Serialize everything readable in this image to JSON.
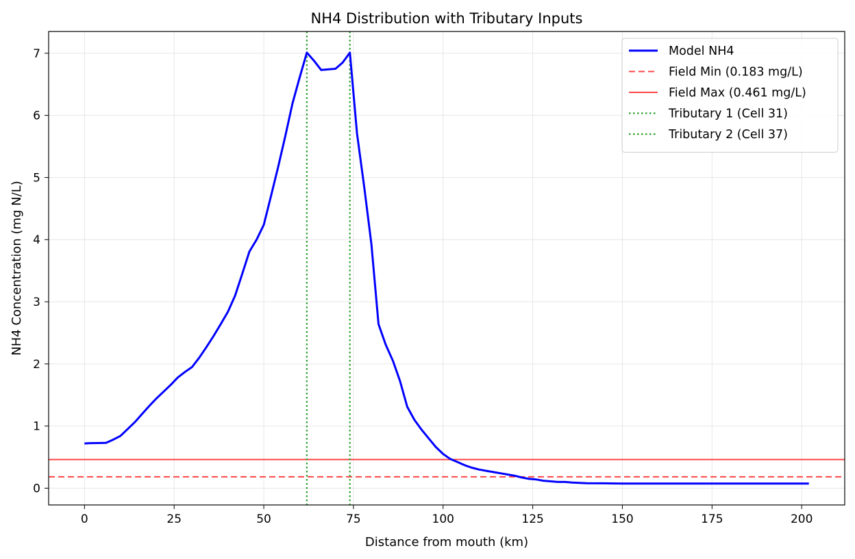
{
  "chart_data": {
    "type": "line",
    "title": "NH4 Distribution with Tributary Inputs",
    "xlabel": "Distance from mouth (km)",
    "ylabel": "NH4 Concentration (mg N/L)",
    "xlim": [
      -10,
      212
    ],
    "ylim": [
      -0.27,
      7.35
    ],
    "xticks": [
      0,
      25,
      50,
      75,
      100,
      125,
      150,
      175,
      200
    ],
    "yticks": [
      0,
      1,
      2,
      3,
      4,
      5,
      6,
      7
    ],
    "grid": true,
    "legend_position": "top-right",
    "series": [
      {
        "name": "Model NH4",
        "style": "solid",
        "color": "#0000ff",
        "x": [
          0,
          2,
          4,
          6,
          8,
          10,
          12,
          14,
          16,
          18,
          20,
          22,
          24,
          26,
          28,
          30,
          32,
          34,
          36,
          38,
          40,
          42,
          44,
          46,
          48,
          50,
          52,
          54,
          56,
          58,
          60,
          62,
          64,
          66,
          68,
          70,
          72,
          74,
          76,
          78,
          80,
          82,
          84,
          86,
          88,
          90,
          92,
          94,
          96,
          98,
          100,
          102,
          104,
          106,
          108,
          110,
          112,
          114,
          116,
          118,
          120,
          122,
          124,
          126,
          128,
          130,
          132,
          134,
          136,
          138,
          140,
          145,
          150,
          155,
          160,
          170,
          180,
          190,
          202
        ],
        "y": [
          0.72,
          0.725,
          0.727,
          0.73,
          0.78,
          0.84,
          0.95,
          1.06,
          1.19,
          1.32,
          1.44,
          1.55,
          1.66,
          1.78,
          1.87,
          1.95,
          2.1,
          2.27,
          2.45,
          2.64,
          2.84,
          3.1,
          3.45,
          3.81,
          4.0,
          4.24,
          4.7,
          5.17,
          5.67,
          6.19,
          6.61,
          7.01,
          6.88,
          6.73,
          6.74,
          6.75,
          6.85,
          7.01,
          5.71,
          4.85,
          3.93,
          2.64,
          2.31,
          2.05,
          1.72,
          1.31,
          1.1,
          0.94,
          0.8,
          0.66,
          0.55,
          0.47,
          0.42,
          0.37,
          0.33,
          0.3,
          0.28,
          0.26,
          0.24,
          0.22,
          0.2,
          0.17,
          0.15,
          0.14,
          0.12,
          0.11,
          0.1,
          0.1,
          0.09,
          0.085,
          0.08,
          0.078,
          0.075,
          0.075,
          0.075,
          0.075,
          0.075,
          0.075,
          0.075
        ]
      }
    ],
    "hlines": [
      {
        "name": "Field Min (0.183 mg/L)",
        "y": 0.183,
        "style": "dashed",
        "color": "#ff4444"
      },
      {
        "name": "Field Max (0.461 mg/L)",
        "y": 0.461,
        "style": "solid",
        "color": "#ff4444"
      }
    ],
    "vlines": [
      {
        "name": "Tributary 1 (Cell 31)",
        "x": 62,
        "style": "dotted",
        "color": "#2ca02c"
      },
      {
        "name": "Tributary 2 (Cell 37)",
        "x": 74,
        "style": "dotted",
        "color": "#2ca02c"
      }
    ]
  }
}
